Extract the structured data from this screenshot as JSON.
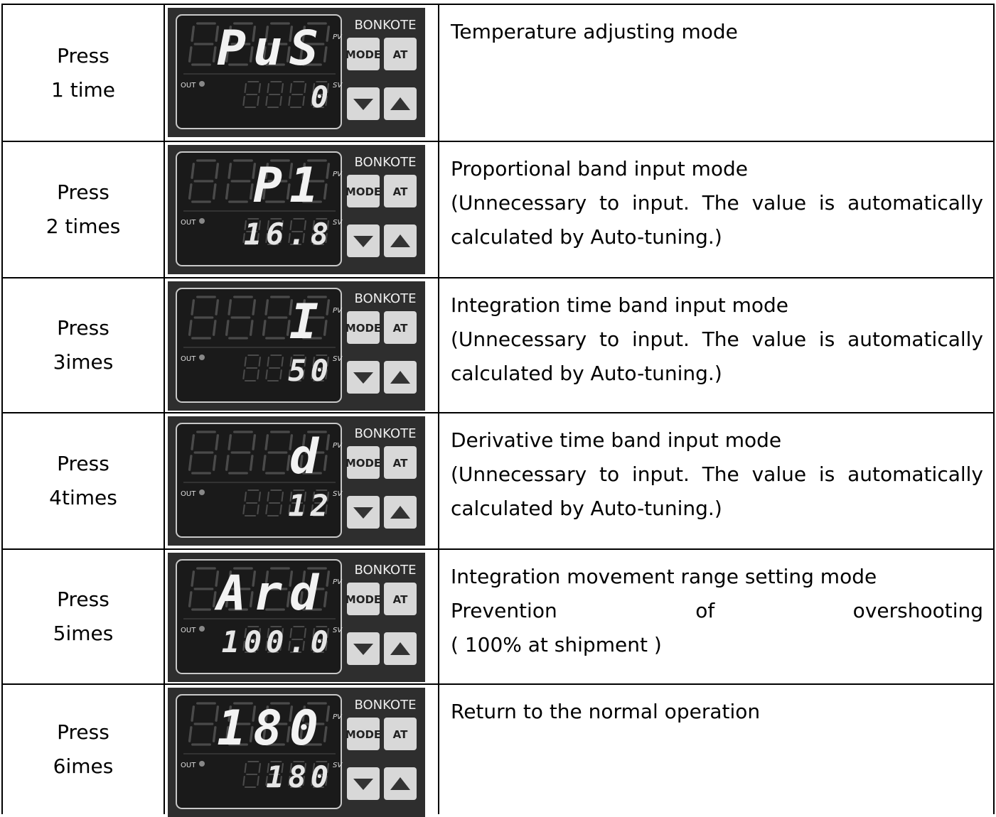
{
  "device": {
    "brand": "BONKOTE",
    "mode": "MODE",
    "at": "AT",
    "pv": "PV",
    "sv": "SV",
    "out": "OUT"
  },
  "rows": [
    {
      "press": "Press",
      "count": "1 time",
      "pv": "PuS",
      "sv": "0",
      "description": [
        "Temperature adjusting mode"
      ]
    },
    {
      "press": "Press",
      "count": "2 times",
      "pv": "P1",
      "sv": "16.8",
      "description": [
        "Proportional band input mode",
        "(Unnecessary to input. The value is automatically",
        "calculated by Auto-tuning.)"
      ]
    },
    {
      "press": "Press",
      "count": "3imes",
      "pv": "I",
      "sv": "50",
      "description": [
        "Integration time band input mode",
        "(Unnecessary to input. The value is automatically",
        "calculated by Auto-tuning.)"
      ]
    },
    {
      "press": "Press",
      "count": "4times",
      "pv": "d",
      "sv": "12",
      "description": [
        "Derivative time band input mode",
        "(Unnecessary to input. The value is automatically",
        "calculated by Auto-tuning.)"
      ]
    },
    {
      "press": "Press",
      "count": "5imes",
      "pv": "Ard",
      "sv": "100.0",
      "description": [
        "Integration movement range setting mode",
        "Prevention of overshooting",
        "( 100% at shipment )"
      ]
    },
    {
      "press": "Press",
      "count": "6imes",
      "pv": "180",
      "sv": "180",
      "description": [
        "Return to the normal operation"
      ]
    }
  ]
}
